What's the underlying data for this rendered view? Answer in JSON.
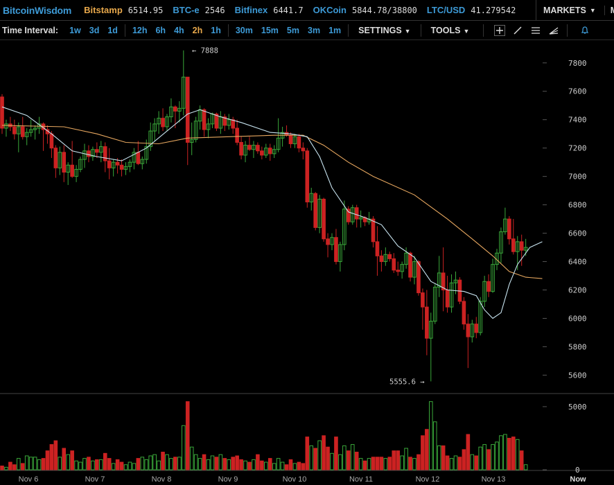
{
  "header": {
    "brand": "BitcoinWisdom",
    "tickers": [
      {
        "exchange": "Bitstamp",
        "price": "6514.95",
        "color": "#e8a84b"
      },
      {
        "exchange": "BTC-e",
        "price": "2546",
        "color": "#3d9ad6"
      },
      {
        "exchange": "Bitfinex",
        "price": "6441.7",
        "color": "#3d9ad6"
      },
      {
        "exchange": "OKCoin",
        "price": "5844.78/38800",
        "color": "#3d9ad6"
      },
      {
        "exchange": "LTC/USD",
        "price": "41.279542",
        "color": "#3d9ad6"
      }
    ],
    "markets_label": "MARKETS",
    "mini_label": "MINI"
  },
  "toolbar": {
    "time_interval_label": "Time Interval:",
    "intervals": [
      "1w",
      "3d",
      "1d",
      "12h",
      "6h",
      "4h",
      "2h",
      "1h",
      "30m",
      "15m",
      "5m",
      "3m",
      "1m"
    ],
    "active_interval": "2h",
    "settings_label": "SETTINGS",
    "tools_label": "TOOLS",
    "tool_icons": [
      "crosshair-icon",
      "line-draw-icon",
      "horizontal-lines-icon",
      "fan-icon",
      "alert-bell-icon"
    ]
  },
  "colors": {
    "up": "#3aa83a",
    "down": "#cc2222",
    "ma_fast": "#c8e4f0",
    "ma_slow": "#e8a860",
    "text": "#cccccc",
    "link": "#3d9ad6",
    "active": "#e8a84b"
  },
  "chart_data": {
    "type": "candlestick",
    "price_axis_ticks": [
      5600,
      5800,
      6000,
      6200,
      6400,
      6600,
      6800,
      7000,
      7200,
      7400,
      7600,
      7800
    ],
    "price_range": [
      5480,
      7960
    ],
    "volume_axis_ticks": [
      0,
      5000
    ],
    "volume_range": [
      0,
      5600
    ],
    "x_labels": [
      "Nov 6",
      "Nov 7",
      "Nov 8",
      "Nov 9",
      "Nov 10",
      "Nov 11",
      "Nov 12",
      "Nov 13",
      "Now"
    ],
    "annotations": [
      {
        "text": "← 7888",
        "price": 7888
      },
      {
        "text": "5555.6 →",
        "price": 5555.6
      }
    ],
    "candles": [
      {
        "o": 7560,
        "h": 7580,
        "l": 7300,
        "c": 7340,
        "v": 300
      },
      {
        "o": 7340,
        "h": 7400,
        "l": 7280,
        "c": 7370,
        "v": 200
      },
      {
        "o": 7370,
        "h": 7420,
        "l": 7320,
        "c": 7350,
        "v": 600
      },
      {
        "o": 7350,
        "h": 7400,
        "l": 7260,
        "c": 7300,
        "v": 400
      },
      {
        "o": 7300,
        "h": 7380,
        "l": 7170,
        "c": 7350,
        "v": 900
      },
      {
        "o": 7350,
        "h": 7420,
        "l": 7260,
        "c": 7280,
        "v": 500
      },
      {
        "o": 7280,
        "h": 7340,
        "l": 7220,
        "c": 7310,
        "v": 1100
      },
      {
        "o": 7310,
        "h": 7400,
        "l": 7280,
        "c": 7330,
        "v": 1000
      },
      {
        "o": 7330,
        "h": 7360,
        "l": 7260,
        "c": 7340,
        "v": 1000
      },
      {
        "o": 7340,
        "h": 7420,
        "l": 7300,
        "c": 7370,
        "v": 800
      },
      {
        "o": 7370,
        "h": 7380,
        "l": 7180,
        "c": 7330,
        "v": 900
      },
      {
        "o": 7330,
        "h": 7360,
        "l": 7230,
        "c": 7300,
        "v": 1500
      },
      {
        "o": 7300,
        "h": 7320,
        "l": 7130,
        "c": 7200,
        "v": 2000
      },
      {
        "o": 7200,
        "h": 7220,
        "l": 6990,
        "c": 7060,
        "v": 2300
      },
      {
        "o": 7060,
        "h": 7210,
        "l": 7010,
        "c": 7170,
        "v": 1000
      },
      {
        "o": 7170,
        "h": 7220,
        "l": 6960,
        "c": 7030,
        "v": 1700
      },
      {
        "o": 7030,
        "h": 7100,
        "l": 6940,
        "c": 7080,
        "v": 1200
      },
      {
        "o": 7080,
        "h": 7250,
        "l": 6990,
        "c": 7000,
        "v": 1500
      },
      {
        "o": 7000,
        "h": 7080,
        "l": 6960,
        "c": 7050,
        "v": 700
      },
      {
        "o": 7050,
        "h": 7140,
        "l": 7030,
        "c": 7120,
        "v": 600
      },
      {
        "o": 7120,
        "h": 7230,
        "l": 7060,
        "c": 7180,
        "v": 900
      },
      {
        "o": 7180,
        "h": 7220,
        "l": 7100,
        "c": 7140,
        "v": 1000
      },
      {
        "o": 7140,
        "h": 7210,
        "l": 7110,
        "c": 7190,
        "v": 700
      },
      {
        "o": 7190,
        "h": 7240,
        "l": 7130,
        "c": 7170,
        "v": 800
      },
      {
        "o": 7170,
        "h": 7250,
        "l": 7100,
        "c": 7210,
        "v": 800
      },
      {
        "o": 7210,
        "h": 7240,
        "l": 7030,
        "c": 7110,
        "v": 1300
      },
      {
        "o": 7110,
        "h": 7200,
        "l": 6980,
        "c": 7060,
        "v": 900
      },
      {
        "o": 7060,
        "h": 7120,
        "l": 7000,
        "c": 7100,
        "v": 500
      },
      {
        "o": 7100,
        "h": 7130,
        "l": 7020,
        "c": 7080,
        "v": 800
      },
      {
        "o": 7080,
        "h": 7120,
        "l": 7000,
        "c": 7050,
        "v": 600
      },
      {
        "o": 7050,
        "h": 7100,
        "l": 7010,
        "c": 7070,
        "v": 400
      },
      {
        "o": 7070,
        "h": 7120,
        "l": 7030,
        "c": 7100,
        "v": 600
      },
      {
        "o": 7100,
        "h": 7200,
        "l": 7050,
        "c": 7170,
        "v": 500
      },
      {
        "o": 7170,
        "h": 7250,
        "l": 7080,
        "c": 7090,
        "v": 900
      },
      {
        "o": 7090,
        "h": 7140,
        "l": 7050,
        "c": 7120,
        "v": 1000
      },
      {
        "o": 7120,
        "h": 7260,
        "l": 7090,
        "c": 7210,
        "v": 800
      },
      {
        "o": 7210,
        "h": 7380,
        "l": 7180,
        "c": 7320,
        "v": 1100
      },
      {
        "o": 7320,
        "h": 7410,
        "l": 7250,
        "c": 7370,
        "v": 1200
      },
      {
        "o": 7370,
        "h": 7460,
        "l": 7300,
        "c": 7410,
        "v": 700
      },
      {
        "o": 7410,
        "h": 7480,
        "l": 7320,
        "c": 7350,
        "v": 1400
      },
      {
        "o": 7350,
        "h": 7440,
        "l": 7320,
        "c": 7420,
        "v": 1200
      },
      {
        "o": 7420,
        "h": 7550,
        "l": 7380,
        "c": 7490,
        "v": 900
      },
      {
        "o": 7490,
        "h": 7500,
        "l": 7340,
        "c": 7460,
        "v": 1000
      },
      {
        "o": 7460,
        "h": 7530,
        "l": 7380,
        "c": 7480,
        "v": 1000
      },
      {
        "o": 7480,
        "h": 7888,
        "l": 7430,
        "c": 7700,
        "v": 3500
      },
      {
        "o": 7700,
        "h": 7700,
        "l": 7080,
        "c": 7240,
        "v": 5400
      },
      {
        "o": 7240,
        "h": 7380,
        "l": 7150,
        "c": 7260,
        "v": 1800
      },
      {
        "o": 7260,
        "h": 7420,
        "l": 7240,
        "c": 7390,
        "v": 1200
      },
      {
        "o": 7390,
        "h": 7500,
        "l": 7330,
        "c": 7470,
        "v": 900
      },
      {
        "o": 7470,
        "h": 7480,
        "l": 7280,
        "c": 7330,
        "v": 1200
      },
      {
        "o": 7330,
        "h": 7410,
        "l": 7270,
        "c": 7370,
        "v": 800
      },
      {
        "o": 7370,
        "h": 7450,
        "l": 7340,
        "c": 7440,
        "v": 1100
      },
      {
        "o": 7440,
        "h": 7450,
        "l": 7320,
        "c": 7340,
        "v": 1000
      },
      {
        "o": 7340,
        "h": 7460,
        "l": 7300,
        "c": 7420,
        "v": 1200
      },
      {
        "o": 7420,
        "h": 7440,
        "l": 7320,
        "c": 7360,
        "v": 900
      },
      {
        "o": 7360,
        "h": 7440,
        "l": 7330,
        "c": 7400,
        "v": 800
      },
      {
        "o": 7400,
        "h": 7420,
        "l": 7300,
        "c": 7340,
        "v": 1000
      },
      {
        "o": 7340,
        "h": 7400,
        "l": 7220,
        "c": 7240,
        "v": 1100
      },
      {
        "o": 7240,
        "h": 7280,
        "l": 7120,
        "c": 7150,
        "v": 800
      },
      {
        "o": 7150,
        "h": 7250,
        "l": 7100,
        "c": 7220,
        "v": 700
      },
      {
        "o": 7220,
        "h": 7280,
        "l": 7180,
        "c": 7190,
        "v": 600
      },
      {
        "o": 7190,
        "h": 7250,
        "l": 7130,
        "c": 7220,
        "v": 800
      },
      {
        "o": 7220,
        "h": 7240,
        "l": 7160,
        "c": 7180,
        "v": 1200
      },
      {
        "o": 7180,
        "h": 7210,
        "l": 7120,
        "c": 7150,
        "v": 700
      },
      {
        "o": 7150,
        "h": 7230,
        "l": 7130,
        "c": 7200,
        "v": 600
      },
      {
        "o": 7200,
        "h": 7230,
        "l": 7110,
        "c": 7160,
        "v": 900
      },
      {
        "o": 7160,
        "h": 7220,
        "l": 7130,
        "c": 7190,
        "v": 500
      },
      {
        "o": 7190,
        "h": 7410,
        "l": 7170,
        "c": 7270,
        "v": 900
      },
      {
        "o": 7270,
        "h": 7350,
        "l": 7210,
        "c": 7310,
        "v": 600
      },
      {
        "o": 7310,
        "h": 7360,
        "l": 7280,
        "c": 7290,
        "v": 400
      },
      {
        "o": 7290,
        "h": 7310,
        "l": 7200,
        "c": 7230,
        "v": 800
      },
      {
        "o": 7230,
        "h": 7300,
        "l": 7200,
        "c": 7280,
        "v": 500
      },
      {
        "o": 7280,
        "h": 7300,
        "l": 7170,
        "c": 7200,
        "v": 600
      },
      {
        "o": 7200,
        "h": 7240,
        "l": 7120,
        "c": 7180,
        "v": 500
      },
      {
        "o": 7180,
        "h": 7200,
        "l": 6780,
        "c": 6820,
        "v": 2600
      },
      {
        "o": 6820,
        "h": 6920,
        "l": 6760,
        "c": 6880,
        "v": 1900
      },
      {
        "o": 6880,
        "h": 6890,
        "l": 6620,
        "c": 6640,
        "v": 1700
      },
      {
        "o": 6640,
        "h": 6870,
        "l": 6600,
        "c": 6840,
        "v": 2300
      },
      {
        "o": 6840,
        "h": 6850,
        "l": 6540,
        "c": 6560,
        "v": 2700
      },
      {
        "o": 6560,
        "h": 6600,
        "l": 6430,
        "c": 6520,
        "v": 1800
      },
      {
        "o": 6520,
        "h": 6600,
        "l": 6480,
        "c": 6570,
        "v": 1300
      },
      {
        "o": 6570,
        "h": 6630,
        "l": 6380,
        "c": 6400,
        "v": 2600
      },
      {
        "o": 6400,
        "h": 6540,
        "l": 6330,
        "c": 6520,
        "v": 1200
      },
      {
        "o": 6520,
        "h": 6830,
        "l": 6480,
        "c": 6770,
        "v": 1900
      },
      {
        "o": 6770,
        "h": 6790,
        "l": 6660,
        "c": 6680,
        "v": 1500
      },
      {
        "o": 6680,
        "h": 6800,
        "l": 6660,
        "c": 6780,
        "v": 2000
      },
      {
        "o": 6780,
        "h": 6800,
        "l": 6640,
        "c": 6700,
        "v": 1400
      },
      {
        "o": 6700,
        "h": 6760,
        "l": 6640,
        "c": 6710,
        "v": 900
      },
      {
        "o": 6710,
        "h": 6720,
        "l": 6650,
        "c": 6680,
        "v": 700
      },
      {
        "o": 6680,
        "h": 6750,
        "l": 6660,
        "c": 6700,
        "v": 900
      },
      {
        "o": 6700,
        "h": 6720,
        "l": 6500,
        "c": 6540,
        "v": 1000
      },
      {
        "o": 6540,
        "h": 6650,
        "l": 6300,
        "c": 6440,
        "v": 1000
      },
      {
        "o": 6440,
        "h": 6480,
        "l": 6330,
        "c": 6400,
        "v": 1000
      },
      {
        "o": 6400,
        "h": 6500,
        "l": 6370,
        "c": 6450,
        "v": 900
      },
      {
        "o": 6450,
        "h": 6470,
        "l": 6400,
        "c": 6420,
        "v": 1000
      },
      {
        "o": 6420,
        "h": 6460,
        "l": 6320,
        "c": 6340,
        "v": 1500
      },
      {
        "o": 6340,
        "h": 6400,
        "l": 6300,
        "c": 6330,
        "v": 1500
      },
      {
        "o": 6330,
        "h": 6400,
        "l": 6280,
        "c": 6380,
        "v": 1100
      },
      {
        "o": 6380,
        "h": 6500,
        "l": 6350,
        "c": 6460,
        "v": 1700
      },
      {
        "o": 6460,
        "h": 6470,
        "l": 6260,
        "c": 6290,
        "v": 1000
      },
      {
        "o": 6290,
        "h": 6440,
        "l": 6240,
        "c": 6400,
        "v": 900
      },
      {
        "o": 6400,
        "h": 6410,
        "l": 6160,
        "c": 6180,
        "v": 1200
      },
      {
        "o": 6180,
        "h": 6210,
        "l": 5920,
        "c": 6080,
        "v": 2700
      },
      {
        "o": 6080,
        "h": 6200,
        "l": 5740,
        "c": 5860,
        "v": 3200
      },
      {
        "o": 5860,
        "h": 6040,
        "l": 5556,
        "c": 5980,
        "v": 5400
      },
      {
        "o": 5980,
        "h": 6240,
        "l": 5960,
        "c": 6220,
        "v": 3800
      },
      {
        "o": 6220,
        "h": 6440,
        "l": 6150,
        "c": 6320,
        "v": 1900
      },
      {
        "o": 6320,
        "h": 6500,
        "l": 6050,
        "c": 6200,
        "v": 1900
      },
      {
        "o": 6200,
        "h": 6300,
        "l": 6040,
        "c": 6080,
        "v": 1100
      },
      {
        "o": 6080,
        "h": 6310,
        "l": 6040,
        "c": 6250,
        "v": 900
      },
      {
        "o": 6250,
        "h": 6330,
        "l": 6170,
        "c": 6270,
        "v": 1100
      },
      {
        "o": 6270,
        "h": 6290,
        "l": 6100,
        "c": 6120,
        "v": 1000
      },
      {
        "o": 6120,
        "h": 6150,
        "l": 5920,
        "c": 5960,
        "v": 1600
      },
      {
        "o": 5960,
        "h": 6030,
        "l": 5650,
        "c": 5870,
        "v": 2800
      },
      {
        "o": 5870,
        "h": 5990,
        "l": 5830,
        "c": 5960,
        "v": 1200
      },
      {
        "o": 5960,
        "h": 6010,
        "l": 5860,
        "c": 5900,
        "v": 1100
      },
      {
        "o": 5900,
        "h": 6150,
        "l": 5880,
        "c": 6120,
        "v": 1800
      },
      {
        "o": 6120,
        "h": 6300,
        "l": 6080,
        "c": 6260,
        "v": 2000
      },
      {
        "o": 6260,
        "h": 6310,
        "l": 6150,
        "c": 6190,
        "v": 1600
      },
      {
        "o": 6190,
        "h": 6420,
        "l": 6180,
        "c": 6380,
        "v": 2000
      },
      {
        "o": 6380,
        "h": 6490,
        "l": 6340,
        "c": 6460,
        "v": 2200
      },
      {
        "o": 6460,
        "h": 6640,
        "l": 6390,
        "c": 6610,
        "v": 2700
      },
      {
        "o": 6610,
        "h": 6780,
        "l": 6590,
        "c": 6700,
        "v": 2800
      },
      {
        "o": 6700,
        "h": 6720,
        "l": 6520,
        "c": 6560,
        "v": 2500
      },
      {
        "o": 6560,
        "h": 6700,
        "l": 6450,
        "c": 6470,
        "v": 2600
      },
      {
        "o": 6470,
        "h": 6580,
        "l": 6340,
        "c": 6540,
        "v": 2400
      },
      {
        "o": 6540,
        "h": 6590,
        "l": 6370,
        "c": 6480,
        "v": 1500
      },
      {
        "o": 6480,
        "h": 6560,
        "l": 6440,
        "c": 6500,
        "v": 400
      }
    ],
    "ma_fast": [
      [
        0,
        7490
      ],
      [
        6,
        7430
      ],
      [
        12,
        7300
      ],
      [
        17,
        7180
      ],
      [
        23,
        7140
      ],
      [
        29,
        7110
      ],
      [
        35,
        7200
      ],
      [
        40,
        7320
      ],
      [
        45,
        7440
      ],
      [
        48,
        7470
      ],
      [
        53,
        7420
      ],
      [
        58,
        7380
      ],
      [
        65,
        7310
      ],
      [
        70,
        7300
      ],
      [
        74,
        7280
      ],
      [
        77,
        7140
      ],
      [
        80,
        6920
      ],
      [
        84,
        6750
      ],
      [
        88,
        6710
      ],
      [
        92,
        6660
      ],
      [
        96,
        6510
      ],
      [
        100,
        6430
      ],
      [
        104,
        6260
      ],
      [
        108,
        6200
      ],
      [
        112,
        6190
      ],
      [
        115,
        6160
      ],
      [
        117,
        6060
      ],
      [
        119,
        6000
      ],
      [
        121,
        6040
      ],
      [
        123,
        6240
      ],
      [
        125,
        6380
      ],
      [
        128,
        6500
      ],
      [
        131,
        6540
      ]
    ],
    "ma_slow": [
      [
        0,
        7360
      ],
      [
        15,
        7350
      ],
      [
        23,
        7300
      ],
      [
        30,
        7240
      ],
      [
        38,
        7230
      ],
      [
        45,
        7270
      ],
      [
        55,
        7280
      ],
      [
        66,
        7290
      ],
      [
        73,
        7290
      ],
      [
        78,
        7220
      ],
      [
        84,
        7100
      ],
      [
        90,
        7000
      ],
      [
        100,
        6870
      ],
      [
        108,
        6700
      ],
      [
        114,
        6560
      ],
      [
        119,
        6440
      ],
      [
        123,
        6330
      ],
      [
        127,
        6290
      ],
      [
        131,
        6280
      ]
    ]
  }
}
